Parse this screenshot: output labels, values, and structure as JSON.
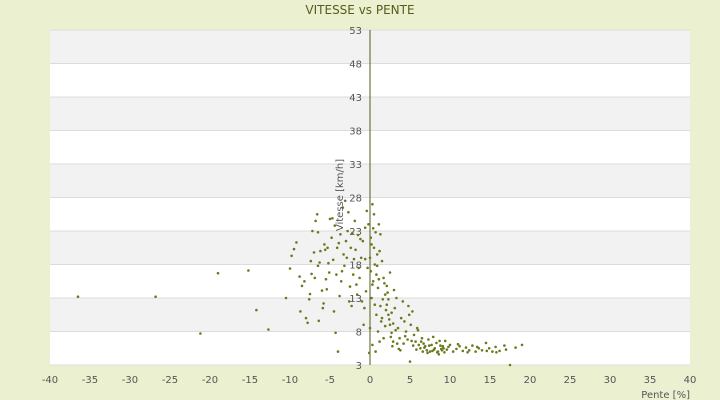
{
  "chart_data": {
    "type": "scatter",
    "title": "VITESSE vs PENTE",
    "xlabel": "Pente [%]",
    "ylabel": "Vitesse [km/h]",
    "xlim": [
      -40,
      40
    ],
    "ylim": [
      3,
      53
    ],
    "xticks": [
      "-40",
      "-35",
      "-30",
      "-25",
      "-20",
      "-15",
      "-10",
      "-5",
      "0",
      "5",
      "10",
      "15",
      "20",
      "25",
      "30",
      "35",
      "40"
    ],
    "yticks": [
      "3",
      "8",
      "13",
      "18",
      "23",
      "28",
      "33",
      "38",
      "43",
      "48",
      "53"
    ],
    "grid": "horizontal bands",
    "colors": {
      "background": "#ebf1d0",
      "plot": "#ffffff",
      "band": "#f2f2f2",
      "axis": "#5a5a1a",
      "marker": "#6b7a1e"
    },
    "points": [
      [
        -36.5,
        13.2
      ],
      [
        -26.8,
        13.2
      ],
      [
        -21.2,
        7.7
      ],
      [
        -19.0,
        16.7
      ],
      [
        -15.2,
        17.1
      ],
      [
        -14.2,
        11.2
      ],
      [
        -12.7,
        8.3
      ],
      [
        -10.5,
        13.0
      ],
      [
        -10.0,
        17.4
      ],
      [
        -9.8,
        19.3
      ],
      [
        -9.5,
        20.3
      ],
      [
        -9.2,
        21.3
      ],
      [
        -8.8,
        16.2
      ],
      [
        -8.5,
        14.8
      ],
      [
        -8.2,
        15.5
      ],
      [
        -8.0,
        10.0
      ],
      [
        -7.8,
        9.3
      ],
      [
        -7.5,
        13.6
      ],
      [
        -7.3,
        16.6
      ],
      [
        -7.0,
        19.8
      ],
      [
        -6.8,
        24.5
      ],
      [
        -6.5,
        22.8
      ],
      [
        -6.3,
        18.3
      ],
      [
        -6.0,
        14.1
      ],
      [
        -5.8,
        12.2
      ],
      [
        -5.5,
        15.8
      ],
      [
        -5.3,
        20.5
      ],
      [
        -5.0,
        24.8
      ],
      [
        -4.8,
        22.0
      ],
      [
        -4.5,
        11.0
      ],
      [
        -4.3,
        7.8
      ],
      [
        -4.0,
        5.0
      ],
      [
        -6.5,
        17.8
      ],
      [
        -6.2,
        20.0
      ],
      [
        -5.7,
        21.0
      ],
      [
        -5.2,
        18.2
      ],
      [
        -4.7,
        24.9
      ],
      [
        -4.2,
        16.5
      ],
      [
        -3.8,
        13.3
      ],
      [
        -3.5,
        17.0
      ],
      [
        -3.3,
        19.5
      ],
      [
        -3.0,
        21.5
      ],
      [
        -2.8,
        23.0
      ],
      [
        -2.5,
        14.7
      ],
      [
        -2.3,
        11.8
      ],
      [
        -2.0,
        18.8
      ],
      [
        -1.8,
        20.2
      ],
      [
        -1.5,
        22.4
      ],
      [
        -1.3,
        16.0
      ],
      [
        -1.0,
        12.5
      ],
      [
        -0.8,
        9.0
      ],
      [
        -0.5,
        14.0
      ],
      [
        -0.3,
        17.5
      ],
      [
        0.0,
        19.0
      ],
      [
        0.2,
        21.0
      ],
      [
        0.4,
        23.4
      ],
      [
        0.6,
        18.0
      ],
      [
        0.8,
        16.5
      ],
      [
        1.0,
        14.5
      ],
      [
        1.2,
        20.0
      ],
      [
        0.5,
        25.5
      ],
      [
        0.3,
        27.0
      ],
      [
        0.1,
        22.0
      ],
      [
        -0.2,
        24.0
      ],
      [
        -0.4,
        26.0
      ],
      [
        -0.6,
        23.5
      ],
      [
        -0.9,
        21.5
      ],
      [
        -1.1,
        19.0
      ],
      [
        -1.4,
        17.5
      ],
      [
        -1.7,
        15.0
      ],
      [
        -2.1,
        16.5
      ],
      [
        -2.4,
        20.5
      ],
      [
        -2.7,
        25.8
      ],
      [
        -3.1,
        27.5
      ],
      [
        -3.4,
        26.5
      ],
      [
        -3.7,
        22.5
      ],
      [
        -4.1,
        20.5
      ],
      [
        1.5,
        18.5
      ],
      [
        1.7,
        16.0
      ],
      [
        1.9,
        13.5
      ],
      [
        2.1,
        12.0
      ],
      [
        2.3,
        10.5
      ],
      [
        2.5,
        9.0
      ],
      [
        2.7,
        7.8
      ],
      [
        2.9,
        6.5
      ],
      [
        3.1,
        11.5
      ],
      [
        3.3,
        13.0
      ],
      [
        3.5,
        8.5
      ],
      [
        3.7,
        7.0
      ],
      [
        3.9,
        10.0
      ],
      [
        4.1,
        12.5
      ],
      [
        4.3,
        9.5
      ],
      [
        4.5,
        8.0
      ],
      [
        4.7,
        6.8
      ],
      [
        4.9,
        10.5
      ],
      [
        5.1,
        9.0
      ],
      [
        5.3,
        11.0
      ],
      [
        5.5,
        7.5
      ],
      [
        5.7,
        6.5
      ],
      [
        5.9,
        8.5
      ],
      [
        6.1,
        6.0
      ],
      [
        6.3,
        5.5
      ],
      [
        6.5,
        7.0
      ],
      [
        6.7,
        6.2
      ],
      [
        6.9,
        5.8
      ],
      [
        7.1,
        5.2
      ],
      [
        7.3,
        6.8
      ],
      [
        7.5,
        5.0
      ],
      [
        7.7,
        6.0
      ],
      [
        7.9,
        7.2
      ],
      [
        8.1,
        5.5
      ],
      [
        8.3,
        6.3
      ],
      [
        8.5,
        5.0
      ],
      [
        8.7,
        6.6
      ],
      [
        8.9,
        5.4
      ],
      [
        9.1,
        5.8
      ],
      [
        9.3,
        4.9
      ],
      [
        9.6,
        5.3
      ],
      [
        10.0,
        6.0
      ],
      [
        10.4,
        5.0
      ],
      [
        10.8,
        5.4
      ],
      [
        11.2,
        5.8
      ],
      [
        11.6,
        5.1
      ],
      [
        12.0,
        5.6
      ],
      [
        12.4,
        5.2
      ],
      [
        12.8,
        5.9
      ],
      [
        13.2,
        5.0
      ],
      [
        13.6,
        5.5
      ],
      [
        14.0,
        5.2
      ],
      [
        14.5,
        6.3
      ],
      [
        14.9,
        5.5
      ],
      [
        15.3,
        5.0
      ],
      [
        15.7,
        5.7
      ],
      [
        16.2,
        5.1
      ],
      [
        17.0,
        5.3
      ],
      [
        17.5,
        3.0
      ],
      [
        18.2,
        5.6
      ],
      [
        19.0,
        6.0
      ],
      [
        0.0,
        8.5
      ],
      [
        0.2,
        13.0
      ],
      [
        0.4,
        15.5
      ],
      [
        0.6,
        12.0
      ],
      [
        0.8,
        10.5
      ],
      [
        1.0,
        8.0
      ],
      [
        1.2,
        6.5
      ],
      [
        1.4,
        9.5
      ],
      [
        1.6,
        12.8
      ],
      [
        1.8,
        15.2
      ],
      [
        2.0,
        11.2
      ],
      [
        2.2,
        13.8
      ],
      [
        2.4,
        9.8
      ],
      [
        2.6,
        7.2
      ],
      [
        2.8,
        5.8
      ],
      [
        3.0,
        14.2
      ],
      [
        5.0,
        3.5
      ],
      [
        -0.1,
        4.8
      ],
      [
        0.3,
        6.0
      ],
      [
        0.7,
        5.0
      ],
      [
        -0.7,
        11.5
      ],
      [
        -1.6,
        13.5
      ],
      [
        -2.6,
        12.5
      ],
      [
        -3.6,
        15.5
      ],
      [
        -4.6,
        18.7
      ],
      [
        -5.6,
        20.2
      ],
      [
        -7.6,
        12.8
      ],
      [
        -8.7,
        11.0
      ],
      [
        -7.2,
        23.0
      ],
      [
        -6.6,
        25.5
      ],
      [
        3.6,
        5.4
      ],
      [
        4.2,
        6.2
      ],
      [
        4.8,
        11.8
      ],
      [
        5.4,
        5.9
      ],
      [
        6.0,
        8.2
      ],
      [
        6.6,
        5.0
      ],
      [
        7.2,
        4.8
      ],
      [
        7.8,
        5.1
      ],
      [
        8.4,
        4.9
      ],
      [
        9.0,
        5.2
      ],
      [
        9.4,
        6.6
      ],
      [
        9.8,
        5.7
      ],
      [
        11.0,
        6.1
      ],
      [
        12.2,
        4.9
      ],
      [
        13.4,
        5.7
      ],
      [
        14.6,
        5.1
      ],
      [
        15.8,
        4.9
      ],
      [
        16.8,
        5.9
      ],
      [
        1.3,
        22.5
      ],
      [
        1.1,
        24.0
      ],
      [
        0.9,
        19.5
      ],
      [
        -0.6,
        18.8
      ],
      [
        -1.2,
        21.8
      ],
      [
        -1.9,
        24.5
      ],
      [
        -2.2,
        22.7
      ],
      [
        -2.9,
        19.0
      ],
      [
        -3.2,
        17.8
      ],
      [
        -3.9,
        21.2
      ],
      [
        -4.4,
        23.8
      ],
      [
        -5.1,
        16.8
      ],
      [
        -5.4,
        14.3
      ],
      [
        -5.9,
        11.5
      ],
      [
        -6.4,
        9.6
      ],
      [
        -6.9,
        16.0
      ],
      [
        -7.4,
        18.5
      ],
      [
        0.1,
        17.0
      ],
      [
        0.3,
        15.0
      ],
      [
        0.5,
        20.5
      ],
      [
        0.7,
        22.8
      ],
      [
        0.9,
        17.8
      ],
      [
        1.1,
        15.8
      ],
      [
        1.3,
        11.8
      ],
      [
        1.5,
        10.0
      ],
      [
        1.7,
        7.0
      ],
      [
        1.9,
        8.8
      ],
      [
        2.1,
        14.8
      ],
      [
        2.3,
        12.8
      ],
      [
        2.5,
        16.8
      ],
      [
        2.7,
        10.8
      ],
      [
        2.9,
        9.2
      ],
      [
        3.2,
        8.2
      ],
      [
        3.4,
        6.2
      ],
      [
        3.8,
        5.2
      ],
      [
        4.4,
        7.3
      ],
      [
        5.2,
        6.6
      ],
      [
        5.8,
        5.3
      ],
      [
        6.4,
        6.5
      ],
      [
        6.8,
        5.6
      ],
      [
        7.4,
        5.9
      ],
      [
        8.0,
        5.3
      ],
      [
        8.6,
        4.6
      ],
      [
        8.8,
        5.9
      ],
      [
        9.2,
        5.5
      ]
    ]
  }
}
